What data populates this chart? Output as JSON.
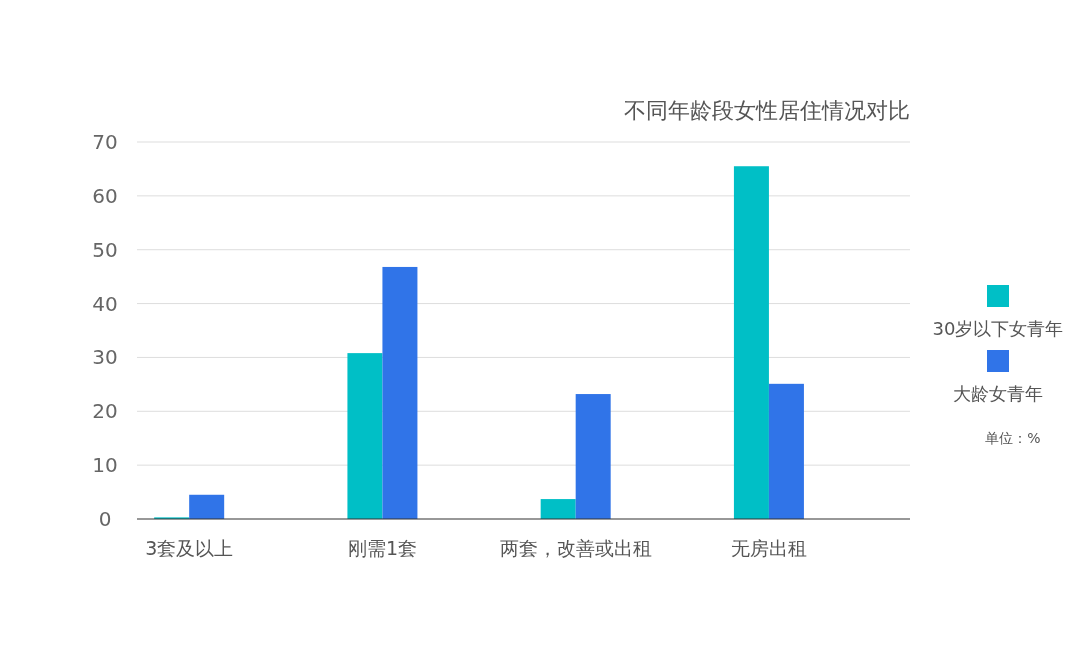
{
  "chart_data": {
    "type": "bar",
    "title": "不同年龄段女性居住情况对比",
    "categories": [
      "3套及以上",
      "刚需1套",
      "两套，改善或出租",
      "无房出租"
    ],
    "series": [
      {
        "name": "30岁以下女青年",
        "color": "#00bfc6",
        "values": [
          0.3,
          30.8,
          3.7,
          65.5
        ]
      },
      {
        "name": "大龄女青年",
        "color": "#3074e8",
        "values": [
          4.5,
          46.8,
          23.2,
          25.1
        ]
      }
    ],
    "ylim": [
      0,
      70
    ],
    "yticks": [
      0,
      10,
      20,
      30,
      40,
      50,
      60,
      70
    ],
    "grid": "y",
    "legend": "right",
    "annotations": [
      "单位：%"
    ]
  }
}
